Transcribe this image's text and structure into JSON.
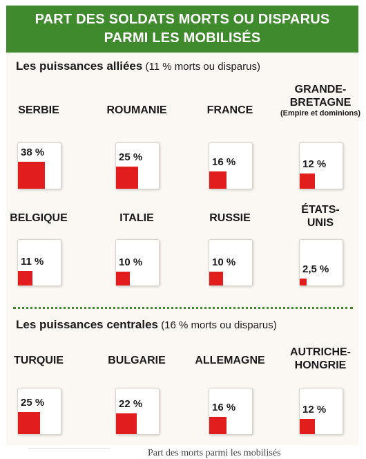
{
  "title_line1": "PART DES SOLDATS MORTS OU DISPARUS",
  "title_line2": "PARMI LES MOBILISÉS",
  "allies": {
    "label": "Les puissances alliées",
    "note": "(11 % morts ou disparus)"
  },
  "central": {
    "label": "Les puissances centrales",
    "note": "(16 % morts ou disparus)"
  },
  "colors": {
    "banner": "#3f8a2c",
    "bar": "#e11d1d"
  },
  "chart_data": {
    "type": "bar",
    "groups": [
      {
        "name": "Les puissances alliées",
        "countries": [
          {
            "name": "SERBIE",
            "label": "38 %",
            "value": 38
          },
          {
            "name": "ROUMANIE",
            "label": "25 %",
            "value": 25
          },
          {
            "name": "FRANCE",
            "label": "16 %",
            "value": 16
          },
          {
            "name": "GRANDE-BRETAGNE",
            "sub": "(Empire et dominions)",
            "label": "12 %",
            "value": 12
          },
          {
            "name": "BELGIQUE",
            "label": "11 %",
            "value": 11
          },
          {
            "name": "ITALIE",
            "label": "10 %",
            "value": 10
          },
          {
            "name": "RUSSIE",
            "label": "10 %",
            "value": 10
          },
          {
            "name": "ÉTATS-UNIS",
            "label": "2,5 %",
            "value": 2.5
          }
        ]
      },
      {
        "name": "Les puissances centrales",
        "countries": [
          {
            "name": "TURQUIE",
            "label": "25 %",
            "value": 25
          },
          {
            "name": "BULGARIE",
            "label": "22 %",
            "value": 22
          },
          {
            "name": "ALLEMAGNE",
            "label": "16 %",
            "value": 16
          },
          {
            "name": "AUTRICHE-HONGRIE",
            "label": "12 %",
            "value": 12
          }
        ]
      }
    ]
  },
  "footer_text": "Part des morts parmi les mobilisés"
}
